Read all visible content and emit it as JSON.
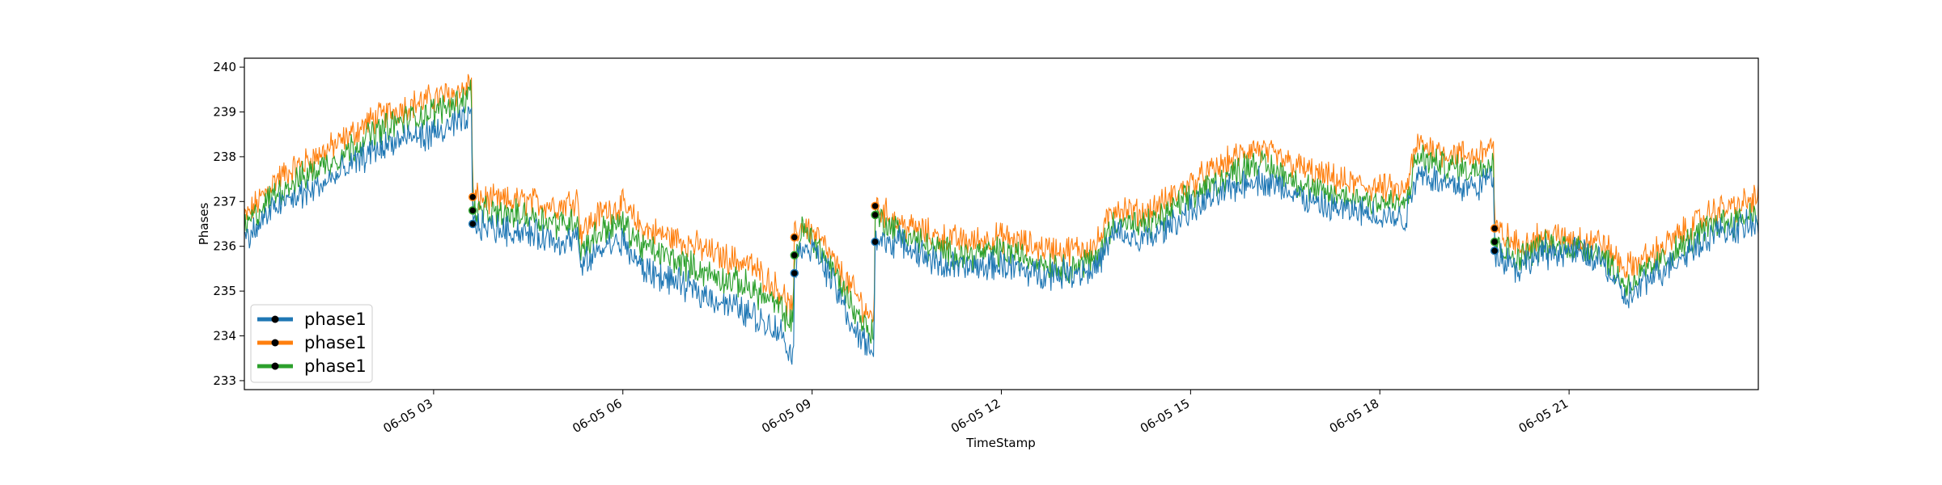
{
  "chart_data": {
    "type": "line",
    "title": "",
    "xlabel": "TimeStamp",
    "ylabel": "Phases",
    "x_unit": "hours since 06-05 00:00",
    "xlim": [
      0,
      24
    ],
    "ylim": [
      232.8,
      240.2
    ],
    "y_ticks": [
      233,
      234,
      235,
      236,
      237,
      238,
      239,
      240
    ],
    "x_ticks": [
      {
        "value": 3,
        "label": "06-05 03"
      },
      {
        "value": 6,
        "label": "06-05 06"
      },
      {
        "value": 9,
        "label": "06-05 09"
      },
      {
        "value": 12,
        "label": "06-05 12"
      },
      {
        "value": 15,
        "label": "06-05 15"
      },
      {
        "value": 18,
        "label": "06-05 18"
      },
      {
        "value": 21,
        "label": "06-05 21"
      }
    ],
    "grid": false,
    "legend_position": "lower-left",
    "series": [
      {
        "name": "phase1",
        "color": "#1f77b4",
        "points": [
          [
            0,
            236.1
          ],
          [
            0.5,
            236.9
          ],
          [
            1,
            237.2
          ],
          [
            1.5,
            237.6
          ],
          [
            2,
            238.1
          ],
          [
            2.5,
            238.4
          ],
          [
            3,
            238.5
          ],
          [
            3.5,
            238.8
          ],
          [
            3.6,
            238.9
          ],
          [
            3.62,
            236.5
          ],
          [
            4,
            236.4
          ],
          [
            4.5,
            236.3
          ],
          [
            5,
            236.1
          ],
          [
            5.3,
            236.2
          ],
          [
            5.32,
            235.5
          ],
          [
            5.7,
            236.0
          ],
          [
            6,
            236.1
          ],
          [
            6.3,
            235.5
          ],
          [
            7,
            235.1
          ],
          [
            7.5,
            234.8
          ],
          [
            8,
            234.5
          ],
          [
            8.5,
            234.1
          ],
          [
            8.7,
            233.5
          ],
          [
            8.72,
            235.4
          ],
          [
            8.85,
            236.1
          ],
          [
            9.1,
            235.8
          ],
          [
            9.4,
            235.0
          ],
          [
            9.7,
            234.0
          ],
          [
            9.98,
            233.7
          ],
          [
            10.0,
            236.1
          ],
          [
            10.4,
            236.1
          ],
          [
            11,
            235.6
          ],
          [
            11.5,
            235.5
          ],
          [
            12,
            235.6
          ],
          [
            12.5,
            235.4
          ],
          [
            13,
            235.4
          ],
          [
            13.5,
            235.5
          ],
          [
            13.8,
            236.3
          ],
          [
            14.2,
            236.1
          ],
          [
            14.5,
            236.3
          ],
          [
            15,
            236.8
          ],
          [
            15.5,
            237.2
          ],
          [
            16,
            237.5
          ],
          [
            16.5,
            237.3
          ],
          [
            17,
            236.9
          ],
          [
            17.5,
            236.8
          ],
          [
            18,
            236.7
          ],
          [
            18.4,
            236.6
          ],
          [
            18.6,
            237.7
          ],
          [
            19,
            237.4
          ],
          [
            19.5,
            237.3
          ],
          [
            19.8,
            237.6
          ],
          [
            19.82,
            235.9
          ],
          [
            20.2,
            235.5
          ],
          [
            20.5,
            235.8
          ],
          [
            21,
            235.9
          ],
          [
            21.5,
            235.7
          ],
          [
            21.9,
            234.8
          ],
          [
            22.3,
            235.3
          ],
          [
            22.8,
            235.8
          ],
          [
            23.3,
            236.3
          ],
          [
            23.7,
            236.4
          ],
          [
            24,
            236.5
          ]
        ]
      },
      {
        "name": "phase1",
        "color": "#ff7f0e",
        "points": [
          [
            0,
            236.6
          ],
          [
            0.5,
            237.5
          ],
          [
            1,
            237.9
          ],
          [
            1.5,
            238.3
          ],
          [
            2,
            238.8
          ],
          [
            2.5,
            239.1
          ],
          [
            3,
            239.3
          ],
          [
            3.5,
            239.5
          ],
          [
            3.6,
            239.7
          ],
          [
            3.62,
            237.1
          ],
          [
            4,
            237.0
          ],
          [
            4.5,
            237.0
          ],
          [
            5,
            236.9
          ],
          [
            5.3,
            237.1
          ],
          [
            5.32,
            236.3
          ],
          [
            5.7,
            236.8
          ],
          [
            6,
            236.9
          ],
          [
            6.3,
            236.4
          ],
          [
            7,
            236.1
          ],
          [
            7.5,
            235.8
          ],
          [
            8,
            235.6
          ],
          [
            8.5,
            235.0
          ],
          [
            8.7,
            234.5
          ],
          [
            8.72,
            236.2
          ],
          [
            8.85,
            236.5
          ],
          [
            9.1,
            236.2
          ],
          [
            9.4,
            235.5
          ],
          [
            9.7,
            234.9
          ],
          [
            9.98,
            234.3
          ],
          [
            10.0,
            236.9
          ],
          [
            10.4,
            236.5
          ],
          [
            11,
            236.2
          ],
          [
            11.5,
            236.1
          ],
          [
            12,
            236.2
          ],
          [
            12.5,
            236.0
          ],
          [
            13,
            235.9
          ],
          [
            13.5,
            236.0
          ],
          [
            13.8,
            236.9
          ],
          [
            14.2,
            236.7
          ],
          [
            14.5,
            236.9
          ],
          [
            15,
            237.4
          ],
          [
            15.5,
            237.8
          ],
          [
            16,
            238.2
          ],
          [
            16.5,
            237.9
          ],
          [
            17,
            237.6
          ],
          [
            17.5,
            237.4
          ],
          [
            18,
            237.3
          ],
          [
            18.4,
            237.2
          ],
          [
            18.6,
            238.3
          ],
          [
            19,
            238.1
          ],
          [
            19.5,
            238.0
          ],
          [
            19.8,
            238.3
          ],
          [
            19.82,
            236.4
          ],
          [
            20.2,
            236.0
          ],
          [
            20.5,
            236.2
          ],
          [
            21,
            236.2
          ],
          [
            21.5,
            236.1
          ],
          [
            21.9,
            235.5
          ],
          [
            22.3,
            235.8
          ],
          [
            22.8,
            236.3
          ],
          [
            23.3,
            236.8
          ],
          [
            23.7,
            236.9
          ],
          [
            24,
            237.1
          ]
        ]
      },
      {
        "name": "phase1",
        "color": "#2ca02c",
        "points": [
          [
            0,
            236.4
          ],
          [
            0.5,
            237.2
          ],
          [
            1,
            237.6
          ],
          [
            1.5,
            238.0
          ],
          [
            2,
            238.5
          ],
          [
            2.5,
            238.8
          ],
          [
            3,
            239.0
          ],
          [
            3.5,
            239.3
          ],
          [
            3.6,
            239.5
          ],
          [
            3.62,
            236.8
          ],
          [
            4,
            236.7
          ],
          [
            4.5,
            236.7
          ],
          [
            5,
            236.5
          ],
          [
            5.3,
            236.6
          ],
          [
            5.32,
            235.9
          ],
          [
            5.7,
            236.4
          ],
          [
            6,
            236.5
          ],
          [
            6.3,
            236.0
          ],
          [
            7,
            235.6
          ],
          [
            7.5,
            235.3
          ],
          [
            8,
            235.1
          ],
          [
            8.5,
            234.6
          ],
          [
            8.7,
            234.2
          ],
          [
            8.72,
            235.8
          ],
          [
            8.85,
            236.4
          ],
          [
            9.1,
            236.0
          ],
          [
            9.4,
            235.3
          ],
          [
            9.7,
            234.5
          ],
          [
            9.98,
            234.0
          ],
          [
            10.0,
            236.7
          ],
          [
            10.4,
            236.3
          ],
          [
            11,
            235.9
          ],
          [
            11.5,
            235.8
          ],
          [
            12,
            235.9
          ],
          [
            12.5,
            235.7
          ],
          [
            13,
            235.5
          ],
          [
            13.5,
            235.7
          ],
          [
            13.8,
            236.6
          ],
          [
            14.2,
            236.4
          ],
          [
            14.5,
            236.6
          ],
          [
            15,
            237.1
          ],
          [
            15.5,
            237.5
          ],
          [
            16,
            237.9
          ],
          [
            16.5,
            237.6
          ],
          [
            17,
            237.2
          ],
          [
            17.5,
            237.1
          ],
          [
            18,
            237.0
          ],
          [
            18.4,
            236.9
          ],
          [
            18.6,
            238.0
          ],
          [
            19,
            237.8
          ],
          [
            19.5,
            237.7
          ],
          [
            19.8,
            238.0
          ],
          [
            19.82,
            236.1
          ],
          [
            20.2,
            235.7
          ],
          [
            20.5,
            236.0
          ],
          [
            21,
            236.0
          ],
          [
            21.5,
            235.9
          ],
          [
            21.9,
            235.1
          ],
          [
            22.3,
            235.5
          ],
          [
            22.8,
            236.0
          ],
          [
            23.3,
            236.5
          ],
          [
            23.7,
            236.6
          ],
          [
            24,
            236.8
          ]
        ]
      }
    ],
    "markers": [
      {
        "series": 0,
        "x": 3.62,
        "y": 236.5
      },
      {
        "series": 1,
        "x": 3.62,
        "y": 237.1
      },
      {
        "series": 2,
        "x": 3.62,
        "y": 236.8
      },
      {
        "series": 0,
        "x": 8.72,
        "y": 235.4
      },
      {
        "series": 1,
        "x": 8.72,
        "y": 236.2
      },
      {
        "series": 2,
        "x": 8.72,
        "y": 235.8
      },
      {
        "series": 0,
        "x": 10.0,
        "y": 236.1
      },
      {
        "series": 1,
        "x": 10.0,
        "y": 236.9
      },
      {
        "series": 2,
        "x": 10.0,
        "y": 236.7
      },
      {
        "series": 0,
        "x": 19.82,
        "y": 235.9
      },
      {
        "series": 1,
        "x": 19.82,
        "y": 236.4
      },
      {
        "series": 2,
        "x": 19.82,
        "y": 236.1
      }
    ]
  }
}
